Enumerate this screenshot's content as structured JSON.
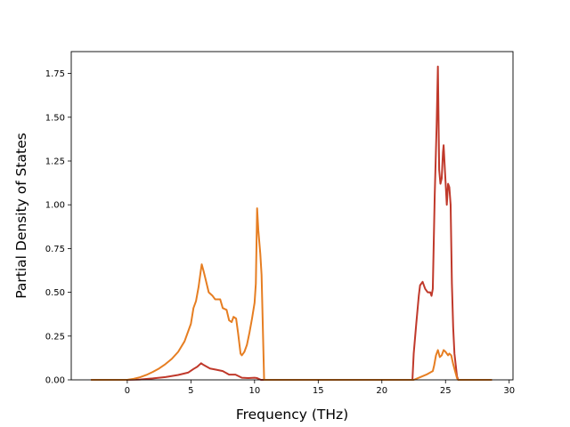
{
  "chart_data": {
    "type": "line",
    "title": "",
    "xlabel": "Frequency (THz)",
    "ylabel": "Partial Density of States",
    "xlim": [
      -4.4,
      30.3
    ],
    "ylim": [
      0,
      1.875
    ],
    "xticks": [
      0,
      5,
      10,
      15,
      20,
      25,
      30
    ],
    "xtick_labels": [
      "0",
      "5",
      "10",
      "15",
      "20",
      "25",
      "30"
    ],
    "yticks": [
      0.0,
      0.25,
      0.5,
      0.75,
      1.0,
      1.25,
      1.5,
      1.75
    ],
    "ytick_labels": [
      "0.00",
      "0.25",
      "0.50",
      "0.75",
      "1.00",
      "1.25",
      "1.50",
      "1.75"
    ],
    "grid": false,
    "legend": "none",
    "series": [
      {
        "color": "#c0392b",
        "points": [
          [
            -2.8,
            0.0
          ],
          [
            0.0,
            0.0
          ],
          [
            1.0,
            0.002
          ],
          [
            2.0,
            0.008
          ],
          [
            3.0,
            0.016
          ],
          [
            4.0,
            0.028
          ],
          [
            4.8,
            0.042
          ],
          [
            5.2,
            0.062
          ],
          [
            5.5,
            0.075
          ],
          [
            5.8,
            0.095
          ],
          [
            6.0,
            0.085
          ],
          [
            6.5,
            0.065
          ],
          [
            7.0,
            0.058
          ],
          [
            7.5,
            0.05
          ],
          [
            8.0,
            0.03
          ],
          [
            8.5,
            0.03
          ],
          [
            9.0,
            0.012
          ],
          [
            9.5,
            0.01
          ],
          [
            10.0,
            0.012
          ],
          [
            10.2,
            0.01
          ],
          [
            10.5,
            0.0
          ],
          [
            15.0,
            0.0
          ],
          [
            20.0,
            0.0
          ],
          [
            22.4,
            0.0
          ],
          [
            22.5,
            0.15
          ],
          [
            22.7,
            0.32
          ],
          [
            22.9,
            0.48
          ],
          [
            23.0,
            0.54
          ],
          [
            23.2,
            0.56
          ],
          [
            23.4,
            0.52
          ],
          [
            23.6,
            0.5
          ],
          [
            23.8,
            0.5
          ],
          [
            23.9,
            0.48
          ],
          [
            24.0,
            0.52
          ],
          [
            24.15,
            1.05
          ],
          [
            24.3,
            1.45
          ],
          [
            24.4,
            1.79
          ],
          [
            24.5,
            1.2
          ],
          [
            24.6,
            1.12
          ],
          [
            24.7,
            1.15
          ],
          [
            24.8,
            1.3
          ],
          [
            24.85,
            1.34
          ],
          [
            24.95,
            1.2
          ],
          [
            25.1,
            1.0
          ],
          [
            25.2,
            1.12
          ],
          [
            25.3,
            1.1
          ],
          [
            25.4,
            1.0
          ],
          [
            25.5,
            0.55
          ],
          [
            25.6,
            0.3
          ],
          [
            25.7,
            0.15
          ],
          [
            25.9,
            0.02
          ],
          [
            26.0,
            0.0
          ],
          [
            28.6,
            0.0
          ]
        ]
      },
      {
        "color": "#e67e22",
        "points": [
          [
            -2.8,
            0.0
          ],
          [
            0.0,
            0.0
          ],
          [
            0.5,
            0.006
          ],
          [
            1.0,
            0.015
          ],
          [
            1.5,
            0.028
          ],
          [
            2.0,
            0.045
          ],
          [
            2.5,
            0.065
          ],
          [
            3.0,
            0.09
          ],
          [
            3.5,
            0.12
          ],
          [
            4.0,
            0.16
          ],
          [
            4.5,
            0.22
          ],
          [
            4.8,
            0.28
          ],
          [
            5.0,
            0.32
          ],
          [
            5.2,
            0.41
          ],
          [
            5.4,
            0.45
          ],
          [
            5.6,
            0.53
          ],
          [
            5.75,
            0.61
          ],
          [
            5.85,
            0.66
          ],
          [
            6.0,
            0.62
          ],
          [
            6.2,
            0.56
          ],
          [
            6.4,
            0.5
          ],
          [
            6.7,
            0.48
          ],
          [
            6.9,
            0.46
          ],
          [
            7.3,
            0.46
          ],
          [
            7.5,
            0.41
          ],
          [
            7.8,
            0.4
          ],
          [
            8.0,
            0.34
          ],
          [
            8.2,
            0.33
          ],
          [
            8.35,
            0.36
          ],
          [
            8.55,
            0.35
          ],
          [
            8.7,
            0.27
          ],
          [
            8.9,
            0.15
          ],
          [
            9.0,
            0.14
          ],
          [
            9.2,
            0.16
          ],
          [
            9.4,
            0.2
          ],
          [
            9.6,
            0.27
          ],
          [
            9.8,
            0.35
          ],
          [
            10.0,
            0.44
          ],
          [
            10.1,
            0.55
          ],
          [
            10.2,
            0.98
          ],
          [
            10.3,
            0.85
          ],
          [
            10.45,
            0.72
          ],
          [
            10.55,
            0.6
          ],
          [
            10.65,
            0.3
          ],
          [
            10.75,
            0.0
          ],
          [
            15.0,
            0.0
          ],
          [
            20.0,
            0.0
          ],
          [
            22.5,
            0.0
          ],
          [
            23.0,
            0.015
          ],
          [
            23.5,
            0.03
          ],
          [
            24.0,
            0.05
          ],
          [
            24.1,
            0.08
          ],
          [
            24.25,
            0.14
          ],
          [
            24.4,
            0.17
          ],
          [
            24.55,
            0.13
          ],
          [
            24.7,
            0.14
          ],
          [
            24.85,
            0.17
          ],
          [
            25.0,
            0.16
          ],
          [
            25.2,
            0.14
          ],
          [
            25.3,
            0.15
          ],
          [
            25.45,
            0.14
          ],
          [
            25.6,
            0.09
          ],
          [
            25.75,
            0.05
          ],
          [
            25.9,
            0.01
          ],
          [
            26.0,
            0.0
          ],
          [
            28.6,
            0.0
          ]
        ]
      }
    ]
  }
}
